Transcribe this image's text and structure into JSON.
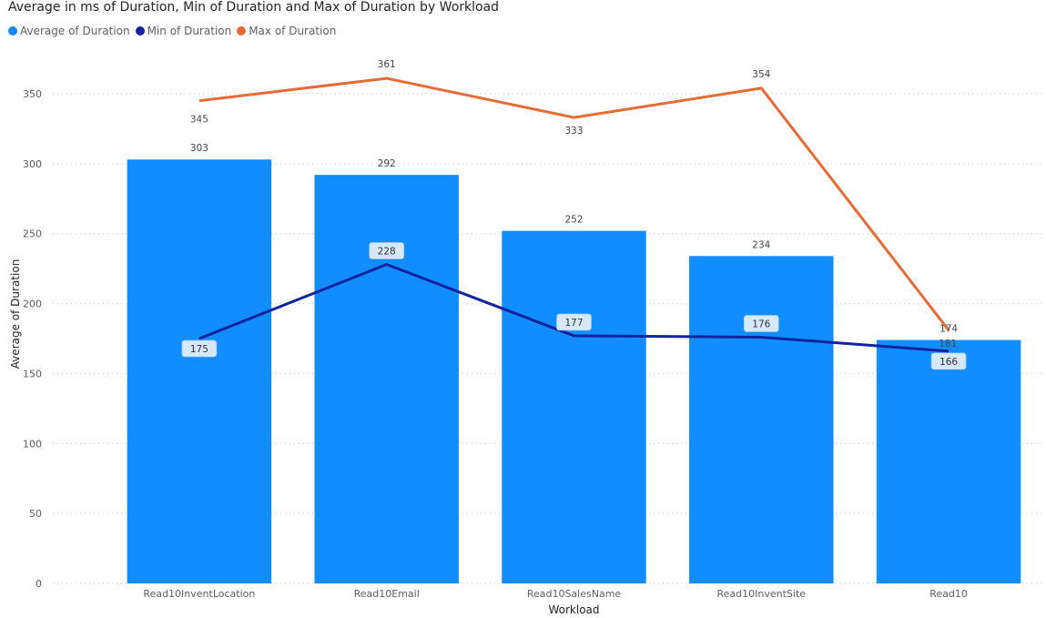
{
  "chart_data": {
    "type": "bar",
    "title": "Average in ms of Duration, Min of Duration and Max of Duration by Workload",
    "xlabel": "Workload",
    "ylabel": "Average of Duration",
    "categories": [
      "Read10InventLocation",
      "Read10Email",
      "Read10SalesName",
      "Read10InventSite",
      "Read10"
    ],
    "ylim": [
      0,
      370
    ],
    "yticks": [
      0,
      50,
      100,
      150,
      200,
      250,
      300,
      350
    ],
    "grid": true,
    "legend_position": "top-left",
    "series": [
      {
        "name": "Average of  Duration",
        "type": "bar",
        "color": "#118DFF",
        "values": [
          303,
          292,
          252,
          234,
          174
        ]
      },
      {
        "name": "Min of  Duration",
        "type": "line",
        "color": "#12239E",
        "values": [
          175,
          228,
          177,
          176,
          166
        ]
      },
      {
        "name": "Max of  Duration",
        "type": "line",
        "color": "#E66C37",
        "values": [
          345,
          361,
          333,
          354,
          181
        ]
      }
    ]
  }
}
